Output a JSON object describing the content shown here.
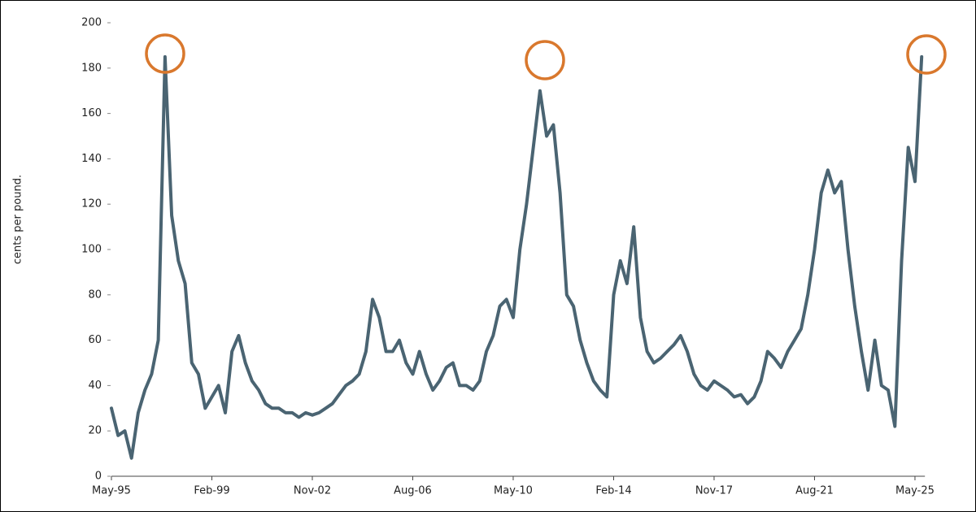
{
  "chart_data": {
    "type": "line",
    "y_label": "cents per pound.",
    "ylim": [
      0,
      200
    ],
    "yticks": [
      0,
      20,
      40,
      60,
      80,
      100,
      120,
      140,
      160,
      180,
      200
    ],
    "xticks": [
      "May-95",
      "Feb-99",
      "Nov-02",
      "Aug-06",
      "May-10",
      "Feb-14",
      "Nov-17",
      "Aug-21",
      "May-25"
    ],
    "x": [
      "May-95",
      "Aug-95",
      "Nov-95",
      "Feb-96",
      "May-96",
      "Aug-96",
      "Nov-96",
      "Feb-97",
      "May-97",
      "Aug-97",
      "Nov-97",
      "Feb-98",
      "May-98",
      "Aug-98",
      "Nov-98",
      "Feb-99",
      "May-99",
      "Aug-99",
      "Nov-99",
      "Feb-00",
      "May-00",
      "Aug-00",
      "Nov-00",
      "Feb-01",
      "May-01",
      "Aug-01",
      "Nov-01",
      "Feb-02",
      "May-02",
      "Aug-02",
      "Nov-02",
      "Feb-03",
      "May-03",
      "Aug-03",
      "Nov-03",
      "Feb-04",
      "May-04",
      "Aug-04",
      "Nov-04",
      "Feb-05",
      "May-05",
      "Aug-05",
      "Nov-05",
      "Feb-06",
      "May-06",
      "Aug-06",
      "Nov-06",
      "Feb-07",
      "May-07",
      "Aug-07",
      "Nov-07",
      "Feb-08",
      "May-08",
      "Aug-08",
      "Nov-08",
      "Feb-09",
      "May-09",
      "Aug-09",
      "Nov-09",
      "Feb-10",
      "May-10",
      "Aug-10",
      "Nov-10",
      "Feb-11",
      "May-11",
      "Aug-11",
      "Nov-11",
      "Feb-12",
      "May-12",
      "Aug-12",
      "Nov-12",
      "Feb-13",
      "May-13",
      "Aug-13",
      "Nov-13",
      "Feb-14",
      "May-14",
      "Aug-14",
      "Nov-14",
      "Feb-15",
      "May-15",
      "Aug-15",
      "Nov-15",
      "Feb-16",
      "May-16",
      "Aug-16",
      "Nov-16",
      "Feb-17",
      "May-17",
      "Aug-17",
      "Nov-17",
      "Feb-18",
      "May-18",
      "Aug-18",
      "Nov-18",
      "Feb-19",
      "May-19",
      "Aug-19",
      "Nov-19",
      "Feb-20",
      "May-20",
      "Aug-20",
      "Nov-20",
      "Feb-21",
      "May-21",
      "Aug-21",
      "Nov-21",
      "Feb-22",
      "May-22",
      "Aug-22",
      "Nov-22",
      "Feb-23",
      "May-23",
      "Aug-23",
      "Nov-23",
      "Feb-24",
      "May-24",
      "Aug-24",
      "Nov-24",
      "Feb-25",
      "May-25",
      "Aug-25"
    ],
    "series": [
      {
        "color": "#4a6472",
        "values": [
          30,
          18,
          20,
          8,
          28,
          38,
          45,
          60,
          185,
          115,
          95,
          85,
          50,
          45,
          30,
          35,
          40,
          28,
          55,
          62,
          50,
          42,
          38,
          32,
          30,
          30,
          28,
          28,
          26,
          28,
          27,
          28,
          30,
          32,
          36,
          40,
          42,
          45,
          55,
          78,
          70,
          55,
          55,
          60,
          50,
          45,
          55,
          45,
          38,
          42,
          48,
          50,
          40,
          40,
          38,
          42,
          55,
          62,
          75,
          78,
          70,
          100,
          120,
          145,
          170,
          150,
          155,
          125,
          80,
          75,
          60,
          50,
          42,
          38,
          35,
          80,
          95,
          85,
          110,
          70,
          55,
          50,
          52,
          55,
          58,
          62,
          55,
          45,
          40,
          38,
          42,
          40,
          38,
          35,
          36,
          32,
          35,
          42,
          55,
          52,
          48,
          55,
          60,
          65,
          80,
          100,
          125,
          135,
          125,
          130,
          100,
          75,
          55,
          38,
          60,
          40,
          38,
          22,
          95,
          145,
          130,
          185
        ]
      }
    ]
  }
}
